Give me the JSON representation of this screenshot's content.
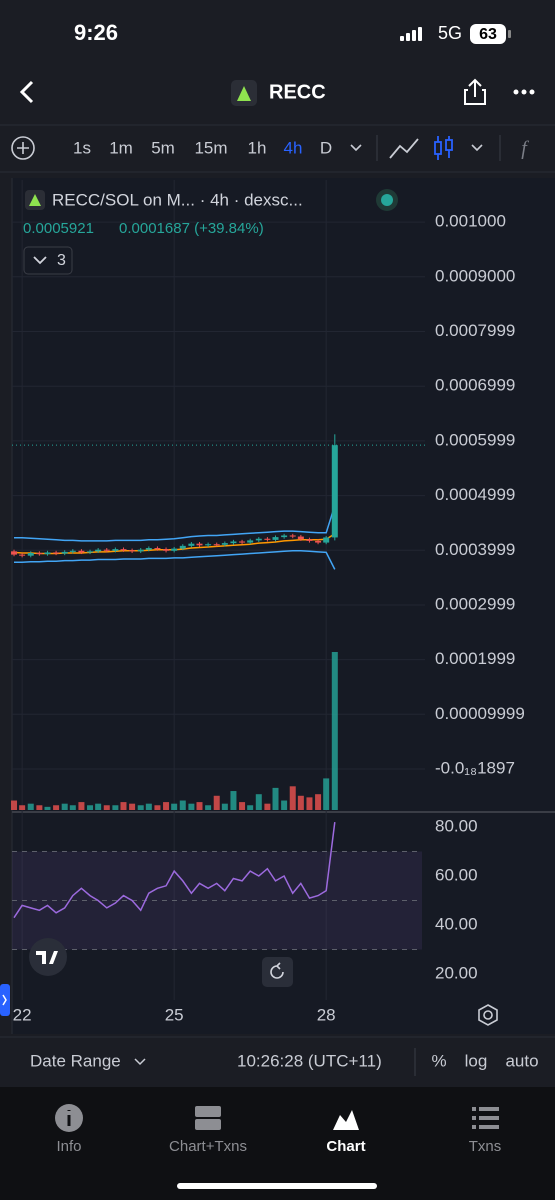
{
  "status_bar": {
    "time": "9:26",
    "network": "5G",
    "battery": "63"
  },
  "header": {
    "title": "RECC"
  },
  "toolbar": {
    "intervals": [
      "1s",
      "1m",
      "5m",
      "15m",
      "1h",
      "4h",
      "D"
    ],
    "active": "4h"
  },
  "chart_data": [
    {
      "type": "candlestick",
      "legend": {
        "symbol": "RECC/SOL on M... · 4h · dexsc...",
        "last": "0.0005921",
        "change": "0.0001687 (+39.84%)",
        "indicators": "3"
      },
      "x": [
        21.84,
        22.0,
        22.17,
        22.34,
        22.5,
        22.67,
        22.84,
        23.0,
        23.17,
        23.34,
        23.5,
        23.67,
        23.84,
        24.0,
        24.17,
        24.34,
        24.5,
        24.67,
        24.84,
        25.0,
        25.17,
        25.34,
        25.5,
        25.67,
        25.84,
        26.0,
        26.17,
        26.34,
        26.5,
        26.67,
        26.84,
        27.0,
        27.17,
        27.34,
        27.5,
        27.67,
        27.84,
        28.0,
        28.17
      ],
      "open": [
        0.000398,
        0.000392,
        0.00039,
        0.000395,
        0.000393,
        0.000396,
        0.000394,
        0.000397,
        0.000399,
        0.000396,
        0.000398,
        0.000401,
        0.000399,
        0.000402,
        0.0004,
        0.000398,
        0.000401,
        0.000404,
        0.000402,
        0.000399,
        0.000403,
        0.000408,
        0.000412,
        0.000409,
        0.000411,
        0.00041,
        0.000413,
        0.000416,
        0.000414,
        0.000418,
        0.000421,
        0.000419,
        0.000424,
        0.000427,
        0.000425,
        0.00042,
        0.000417,
        0.000414,
        0.0004234
      ],
      "high": [
        0.000401,
        0.000395,
        0.000398,
        0.000398,
        0.000399,
        0.000399,
        0.0004,
        0.000402,
        0.000402,
        0.000401,
        0.000404,
        0.000404,
        0.000405,
        0.000405,
        0.000403,
        0.000404,
        0.000407,
        0.000407,
        0.000405,
        0.000406,
        0.000411,
        0.000415,
        0.000415,
        0.000414,
        0.000414,
        0.000416,
        0.000419,
        0.000419,
        0.000421,
        0.000424,
        0.000424,
        0.000427,
        0.00043,
        0.00043,
        0.000428,
        0.000423,
        0.00042,
        0.000426,
        0.000612
      ],
      "low": [
        0.000389,
        0.000387,
        0.000387,
        0.00039,
        0.00039,
        0.000391,
        0.000391,
        0.000394,
        0.000393,
        0.000393,
        0.000395,
        0.000396,
        0.000396,
        0.000397,
        0.000395,
        0.000395,
        0.000398,
        0.000399,
        0.000396,
        0.000396,
        0.0004,
        0.000405,
        0.000406,
        0.000406,
        0.000407,
        0.000407,
        0.00041,
        0.000411,
        0.000411,
        0.000415,
        0.000416,
        0.000416,
        0.000421,
        0.000422,
        0.000417,
        0.000414,
        0.000411,
        0.000411,
        0.000418
      ],
      "close": [
        0.000392,
        0.00039,
        0.000395,
        0.000393,
        0.000396,
        0.000394,
        0.000397,
        0.000399,
        0.000396,
        0.000398,
        0.000401,
        0.000399,
        0.000402,
        0.0004,
        0.000398,
        0.000401,
        0.000404,
        0.000402,
        0.000399,
        0.000403,
        0.000408,
        0.000412,
        0.000409,
        0.000411,
        0.00041,
        0.000413,
        0.000416,
        0.000414,
        0.000418,
        0.000421,
        0.000419,
        0.000424,
        0.000427,
        0.000425,
        0.00042,
        0.000417,
        0.000414,
        0.0004234,
        0.0005921
      ],
      "volume": [
        6,
        3,
        4,
        3,
        2,
        3,
        4,
        3,
        5,
        3,
        4,
        3,
        3,
        5,
        4,
        3,
        4,
        3,
        5,
        4,
        6,
        4,
        5,
        3,
        9,
        4,
        12,
        5,
        3,
        10,
        4,
        14,
        6,
        15,
        9,
        8,
        10,
        20,
        100
      ],
      "vlim": [
        0,
        100
      ],
      "up_color": "#26a69a",
      "down_color": "#ef5350",
      "lines": [
        {
          "color": "#42a5f5",
          "values": [
            0.000423,
            0.000423,
            0.000422,
            0.000421,
            0.00042,
            0.000419,
            0.000418,
            0.000418,
            0.000417,
            0.000417,
            0.000417,
            0.000417,
            0.000418,
            0.000418,
            0.000418,
            0.000418,
            0.000419,
            0.000419,
            0.00042,
            0.000421,
            0.000423,
            0.000425,
            0.000426,
            0.000427,
            0.000427,
            0.000428,
            0.000429,
            0.00043,
            0.000431,
            0.000432,
            0.000433,
            0.000434,
            0.000435,
            0.000435,
            0.000434,
            0.000433,
            0.000432,
            0.000432,
            0.000482
          ]
        },
        {
          "color": "#42a5f5",
          "values": [
            0.000378,
            0.000378,
            0.000379,
            0.000379,
            0.00038,
            0.00038,
            0.000381,
            0.000381,
            0.000382,
            0.000382,
            0.000383,
            0.000383,
            0.000383,
            0.000384,
            0.000384,
            0.000384,
            0.000385,
            0.000385,
            0.000385,
            0.000386,
            0.000386,
            0.000387,
            0.000388,
            0.000389,
            0.00039,
            0.000391,
            0.000392,
            0.000393,
            0.000394,
            0.000395,
            0.000396,
            0.000397,
            0.000398,
            0.000399,
            0.000399,
            0.000398,
            0.000397,
            0.000396,
            0.000365
          ]
        },
        {
          "color": "#ff9800",
          "values": [
            0.000396,
            0.000395,
            0.000395,
            0.000394,
            0.000394,
            0.000394,
            0.000395,
            0.000395,
            0.000395,
            0.000396,
            0.000397,
            0.000397,
            0.000398,
            0.000399,
            0.000399,
            0.000399,
            0.0004,
            0.000401,
            0.000401,
            0.000401,
            0.000402,
            0.000404,
            0.000405,
            0.000406,
            0.000407,
            0.000408,
            0.000409,
            0.00041,
            0.000411,
            0.000413,
            0.000414,
            0.000415,
            0.000417,
            0.000418,
            0.000419,
            0.000419,
            0.000419,
            0.00042,
            0.00043
          ]
        }
      ],
      "last_price_line": true,
      "xlim": [
        21.8,
        29.95
      ],
      "xticks": [
        22,
        25,
        28
      ],
      "ylim": [
        -7.5e-05,
        0.001077
      ],
      "yticks": [
        {
          "value": 0.001,
          "label": "0.001000"
        },
        {
          "value": 0.0009,
          "label": "0.0009000"
        },
        0.0007999,
        0.0006999,
        0.0005999,
        0.0004999,
        0.0003999,
        0.0002999,
        0.0001999,
        9.999e-05,
        {
          "value": -1.897e-19,
          "label": "-0.0₁₈1897"
        }
      ],
      "grid": true
    },
    {
      "type": "line",
      "color": "#9c6ade",
      "values": [
        43,
        48,
        47,
        46,
        48,
        45,
        47,
        52,
        55,
        52,
        50,
        47,
        49,
        52,
        50,
        46,
        53,
        55,
        56,
        62,
        58,
        53,
        57,
        55,
        57,
        54,
        59,
        58,
        62,
        60,
        63,
        58,
        60,
        53,
        57,
        51,
        52,
        54,
        82
      ],
      "bands": [
        30,
        50,
        70
      ],
      "ylim": [
        9.4,
        84.9
      ],
      "yticks": [
        {
          "value": 80,
          "label": "80.00"
        },
        {
          "value": 60,
          "label": "60.00"
        },
        {
          "value": 40,
          "label": "40.00"
        },
        {
          "value": 20,
          "label": "20.00"
        }
      ]
    }
  ],
  "footer": {
    "date_range": "Date Range",
    "time": "10:26:28 (UTC+11)",
    "options": [
      "%",
      "log",
      "auto"
    ]
  },
  "tabs": [
    "Info",
    "Chart+Txns",
    "Chart",
    "Txns"
  ],
  "active_tab": "Chart"
}
